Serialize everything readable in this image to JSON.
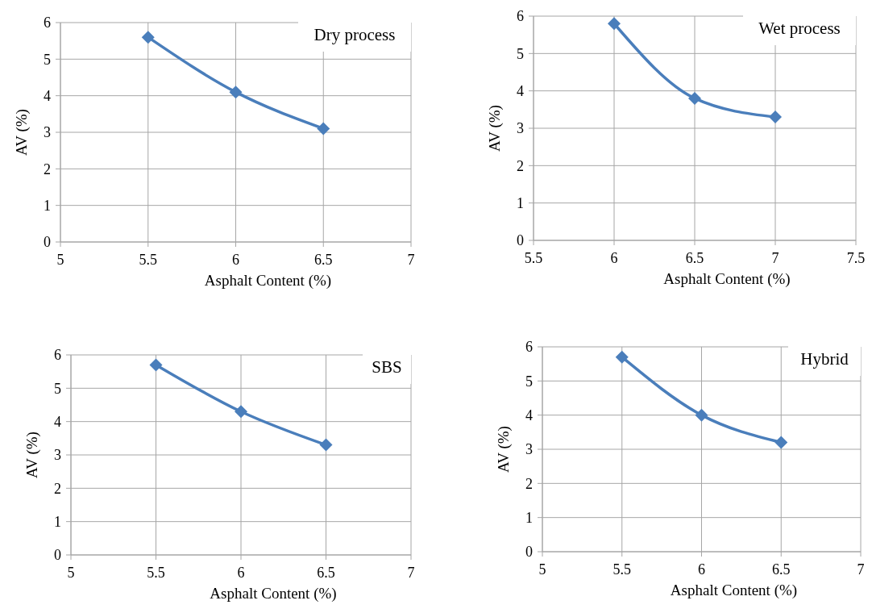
{
  "chart_data": [
    {
      "type": "line",
      "title": "Dry process",
      "xlabel": "Asphalt Content (%)",
      "ylabel": "AV (%)",
      "x": [
        5.5,
        6,
        6.5
      ],
      "series": [
        {
          "color": "#4a7ebb",
          "values": [
            5.6,
            4.1,
            3.1
          ]
        }
      ],
      "xlim": [
        5,
        7
      ],
      "xticks": [
        5,
        5.5,
        6,
        6.5,
        7
      ],
      "ylim": [
        0,
        6
      ],
      "yticks": [
        0,
        1,
        2,
        3,
        4,
        5,
        6
      ],
      "grid": true,
      "marker": "diamond",
      "line_style": "solid"
    },
    {
      "type": "line",
      "title": "Wet process",
      "xlabel": "Asphalt Content (%)",
      "ylabel": "AV (%)",
      "x": [
        6,
        6.5,
        7
      ],
      "series": [
        {
          "color": "#4a7ebb",
          "values": [
            5.8,
            3.8,
            3.3
          ]
        }
      ],
      "xlim": [
        5.5,
        7.5
      ],
      "xticks": [
        5.5,
        6,
        6.5,
        7,
        7.5
      ],
      "ylim": [
        0,
        6
      ],
      "yticks": [
        0,
        1,
        2,
        3,
        4,
        5,
        6
      ],
      "grid": true,
      "marker": "diamond",
      "line_style": "solid"
    },
    {
      "type": "line",
      "title": "SBS",
      "xlabel": "Asphalt Content (%)",
      "ylabel": "AV (%)",
      "x": [
        5.5,
        6,
        6.5
      ],
      "series": [
        {
          "color": "#4a7ebb",
          "values": [
            5.7,
            4.3,
            3.3
          ]
        }
      ],
      "xlim": [
        5,
        7
      ],
      "xticks": [
        5,
        5.5,
        6,
        6.5,
        7
      ],
      "ylim": [
        0,
        6
      ],
      "yticks": [
        0,
        1,
        2,
        3,
        4,
        5,
        6
      ],
      "grid": true,
      "marker": "diamond",
      "line_style": "solid"
    },
    {
      "type": "line",
      "title": "Hybrid",
      "xlabel": "Asphalt Content (%)",
      "ylabel": "AV (%)",
      "x": [
        5.5,
        6,
        6.5
      ],
      "series": [
        {
          "color": "#4a7ebb",
          "values": [
            5.7,
            4.0,
            3.2
          ]
        }
      ],
      "xlim": [
        5,
        7
      ],
      "xticks": [
        5,
        5.5,
        6,
        6.5,
        7
      ],
      "ylim": [
        0,
        6
      ],
      "yticks": [
        0,
        1,
        2,
        3,
        4,
        5,
        6
      ],
      "grid": true,
      "marker": "diamond",
      "line_style": "solid"
    }
  ]
}
